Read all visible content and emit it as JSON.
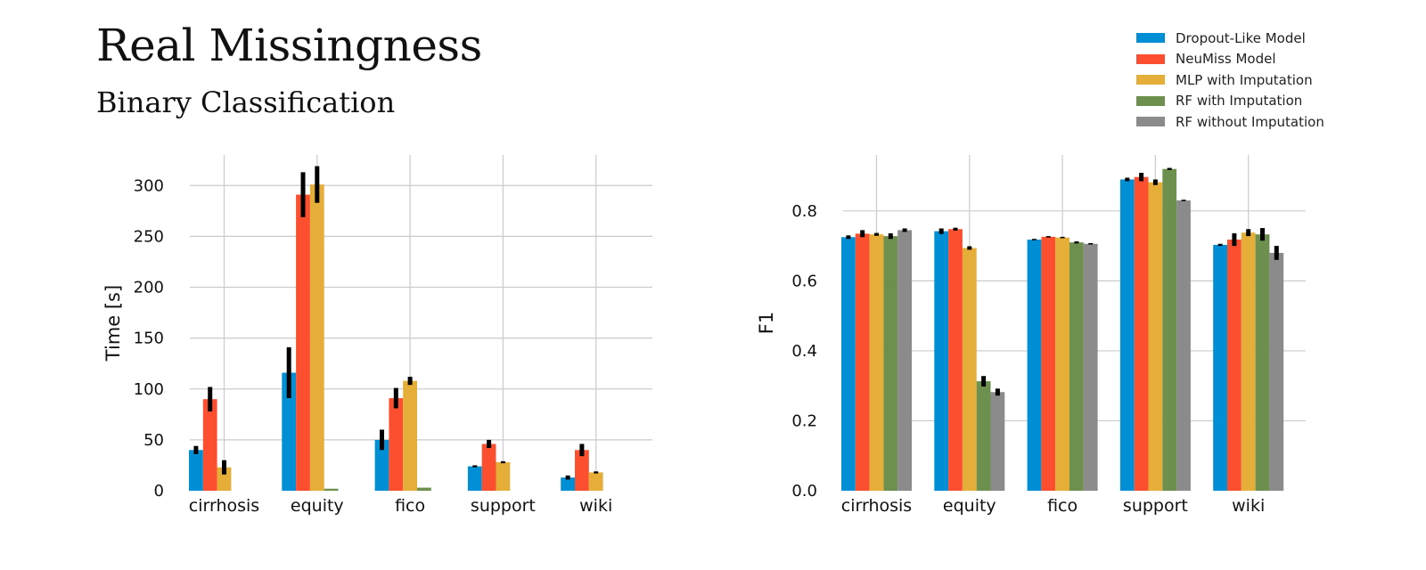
{
  "figure": {
    "title": "Real Missingness",
    "subtitle": "Binary Classification"
  },
  "legend": {
    "placement": "top-right",
    "items": [
      {
        "label": "Dropout-Like Model",
        "color": "#008fd5"
      },
      {
        "label": "NeuMiss Model",
        "color": "#fc4f30"
      },
      {
        "label": "MLP with Imputation",
        "color": "#e5ae38"
      },
      {
        "label": "RF with Imputation",
        "color": "#6d904f"
      },
      {
        "label": "RF without Imputation",
        "color": "#8b8b8b"
      }
    ]
  },
  "chart_data": [
    {
      "type": "bar",
      "categories": [
        "cirrhosis",
        "equity",
        "fico",
        "support",
        "wiki"
      ],
      "xlabel": "",
      "ylabel": "Time [s]",
      "ylim": [
        0,
        330
      ],
      "yticks": [
        0,
        50,
        100,
        150,
        200,
        250,
        300
      ],
      "grid": true,
      "series": [
        {
          "name": "Dropout-Like Model",
          "values": [
            40,
            116,
            50,
            24,
            13
          ],
          "errors": [
            4,
            25,
            10,
            1,
            2
          ]
        },
        {
          "name": "NeuMiss Model",
          "values": [
            90,
            291,
            91,
            46,
            40
          ],
          "errors": [
            12,
            22,
            10,
            4,
            6
          ]
        },
        {
          "name": "MLP with Imputation",
          "values": [
            23,
            301,
            108,
            28,
            18
          ],
          "errors": [
            7,
            18,
            4,
            1,
            1
          ]
        },
        {
          "name": "RF with Imputation",
          "values": [
            0,
            2,
            3,
            0,
            0
          ],
          "errors": [
            0,
            0,
            0,
            0,
            0
          ]
        },
        {
          "name": "RF without Imputation",
          "values": [
            0,
            0,
            0,
            0,
            0
          ],
          "errors": [
            0,
            0,
            0,
            0,
            0
          ]
        }
      ]
    },
    {
      "type": "bar",
      "categories": [
        "cirrhosis",
        "equity",
        "fico",
        "support",
        "wiki"
      ],
      "xlabel": "",
      "ylabel": "F1",
      "ylim": [
        0,
        0.96
      ],
      "yticks": [
        0.0,
        0.2,
        0.4,
        0.6,
        0.8
      ],
      "grid": true,
      "series": [
        {
          "name": "Dropout-Like Model",
          "values": [
            0.725,
            0.742,
            0.718,
            0.89,
            0.703
          ],
          "errors": [
            0.005,
            0.008,
            0.002,
            0.005,
            0.003
          ]
        },
        {
          "name": "NeuMiss Model",
          "values": [
            0.735,
            0.748,
            0.726,
            0.897,
            0.718
          ],
          "errors": [
            0.01,
            0.004,
            0.002,
            0.012,
            0.018
          ]
        },
        {
          "name": "MLP with Imputation",
          "values": [
            0.733,
            0.694,
            0.724,
            0.882,
            0.738
          ],
          "errors": [
            0.004,
            0.005,
            0.002,
            0.008,
            0.01
          ]
        },
        {
          "name": "RF with Imputation",
          "values": [
            0.728,
            0.313,
            0.71,
            0.92,
            0.733
          ],
          "errors": [
            0.008,
            0.015,
            0.003,
            0.003,
            0.018
          ]
        },
        {
          "name": "RF without Imputation",
          "values": [
            0.745,
            0.282,
            0.706,
            0.83,
            0.68
          ],
          "errors": [
            0.005,
            0.01,
            0.002,
            0.002,
            0.02
          ]
        }
      ]
    }
  ]
}
